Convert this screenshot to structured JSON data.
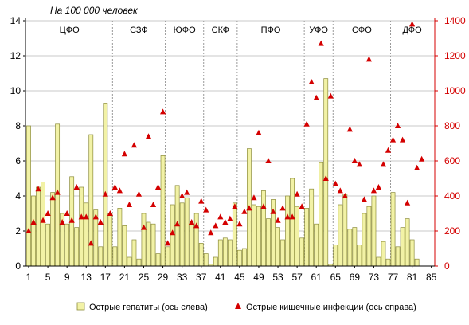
{
  "chart_data": {
    "type": "bar",
    "unit_label": "На 100 000 человек",
    "regions": [
      {
        "label": "ЦФО",
        "from": 1,
        "to": 18
      },
      {
        "label": "СЗФ",
        "from": 19,
        "to": 29
      },
      {
        "label": "ЮФО",
        "from": 30,
        "to": 37
      },
      {
        "label": "СКФ",
        "from": 38,
        "to": 44
      },
      {
        "label": "ПФО",
        "from": 45,
        "to": 58
      },
      {
        "label": "УФО",
        "from": 59,
        "to": 64
      },
      {
        "label": "СФО",
        "from": 65,
        "to": 76
      },
      {
        "label": "ДФО",
        "from": 77,
        "to": 85
      }
    ],
    "y_left": {
      "min": 0,
      "max": 14,
      "step": 2,
      "ticks": [
        "0",
        "2",
        "4",
        "6",
        "8",
        "10",
        "12",
        "14"
      ]
    },
    "y_right": {
      "min": 0,
      "max": 1400,
      "step": 200,
      "ticks": [
        "0",
        "200",
        "400",
        "600",
        "800",
        "1000",
        "1200",
        "1400"
      ]
    },
    "x_ticks": [
      "1",
      "5",
      "9",
      "13",
      "17",
      "21",
      "25",
      "29",
      "33",
      "37",
      "41",
      "45",
      "49",
      "53",
      "57",
      "61",
      "65",
      "69",
      "73",
      "77",
      "81",
      "85"
    ],
    "series": [
      {
        "name": "Острые гепатиты (ось слева)",
        "axis": "left",
        "values": [
          8.0,
          4.0,
          4.5,
          4.8,
          2.4,
          4.2,
          8.1,
          3.0,
          2.4,
          5.1,
          2.2,
          4.5,
          3.6,
          7.5,
          3.2,
          1.1,
          9.3,
          3.0,
          1.1,
          3.3,
          2.3,
          0.5,
          1.5,
          0.4,
          3.0,
          2.5,
          2.4,
          0.7,
          6.3,
          1.1,
          3.5,
          4.6,
          3.6,
          3.9,
          2.4,
          3.0,
          1.3,
          0.7,
          0.1,
          0.5,
          1.5,
          1.6,
          1.5,
          3.6,
          0.9,
          1.0,
          6.7,
          3.5,
          3.4,
          4.3,
          2.7,
          3.8,
          2.2,
          1.5,
          4.0,
          5.0,
          3.4,
          1.6,
          3.3,
          4.4,
          2.4,
          5.9,
          10.7,
          0.1,
          1.2,
          3.5,
          4.1,
          2.1,
          2.2,
          1.2,
          3.0,
          3.4,
          4.0,
          0.5,
          1.4,
          0.4,
          4.2,
          1.1,
          2.2,
          2.7,
          1.5,
          0.4,
          0,
          0,
          0
        ]
      },
      {
        "name": "Острые кишечные инфекции (ось справа)",
        "axis": "right",
        "values": [
          200,
          250,
          440,
          260,
          300,
          390,
          420,
          250,
          300,
          260,
          450,
          280,
          280,
          130,
          280,
          250,
          410,
          300,
          450,
          430,
          640,
          350,
          690,
          410,
          220,
          740,
          350,
          450,
          880,
          130,
          190,
          240,
          400,
          420,
          250,
          230,
          370,
          320,
          190,
          230,
          280,
          250,
          270,
          340,
          240,
          310,
          330,
          390,
          760,
          340,
          600,
          310,
          260,
          330,
          280,
          280,
          410,
          340,
          810,
          1050,
          960,
          1270,
          500,
          970,
          470,
          430,
          400,
          780,
          600,
          580,
          380,
          1180,
          430,
          450,
          580,
          660,
          720,
          800,
          720,
          360,
          1380,
          560,
          610,
          0,
          0
        ]
      }
    ],
    "colors": {
      "bar_fill": "#f2f2a6",
      "bar_stroke": "#8c8c3a",
      "marker": "#d40000",
      "right_axis": "#d40000"
    }
  }
}
